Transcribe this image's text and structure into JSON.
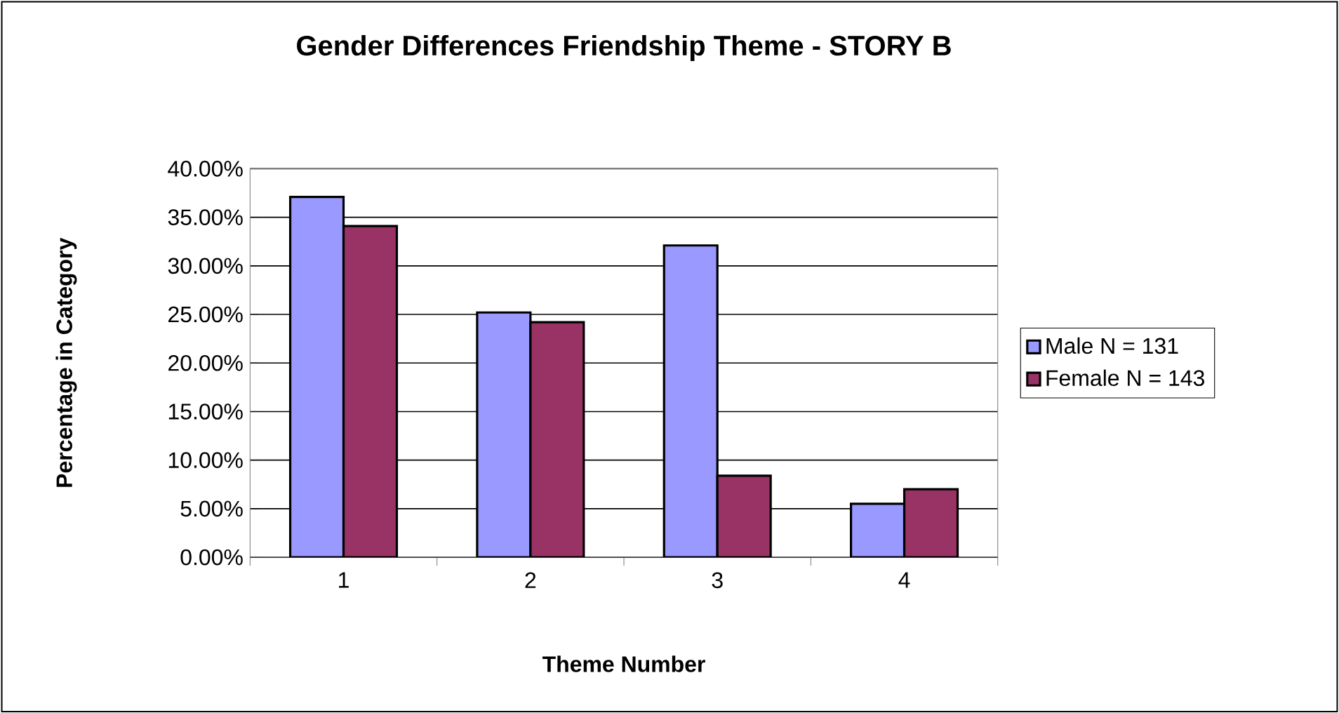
{
  "chart_data": {
    "type": "bar",
    "title": "Gender Differences Friendship Theme - STORY B",
    "xlabel": "Theme Number",
    "ylabel": "Percentage in Category",
    "categories": [
      "1",
      "2",
      "3",
      "4"
    ],
    "series": [
      {
        "name": "Male N = 131",
        "color": "#9999ff",
        "values": [
          37.1,
          25.2,
          32.1,
          5.5
        ]
      },
      {
        "name": "Female  N = 143",
        "color": "#993366",
        "values": [
          34.1,
          24.2,
          8.4,
          7.0
        ]
      }
    ],
    "ylim": [
      0,
      40
    ],
    "yticks": [
      {
        "value": 0,
        "label": "0.00%"
      },
      {
        "value": 5,
        "label": "5.00%"
      },
      {
        "value": 10,
        "label": "10.00%"
      },
      {
        "value": 15,
        "label": "15.00%"
      },
      {
        "value": 20,
        "label": "20.00%"
      },
      {
        "value": 25,
        "label": "25.00%"
      },
      {
        "value": 30,
        "label": "30.00%"
      },
      {
        "value": 35,
        "label": "35.00%"
      },
      {
        "value": 40,
        "label": "40.00%"
      }
    ],
    "grid": "y",
    "legend": "right"
  }
}
